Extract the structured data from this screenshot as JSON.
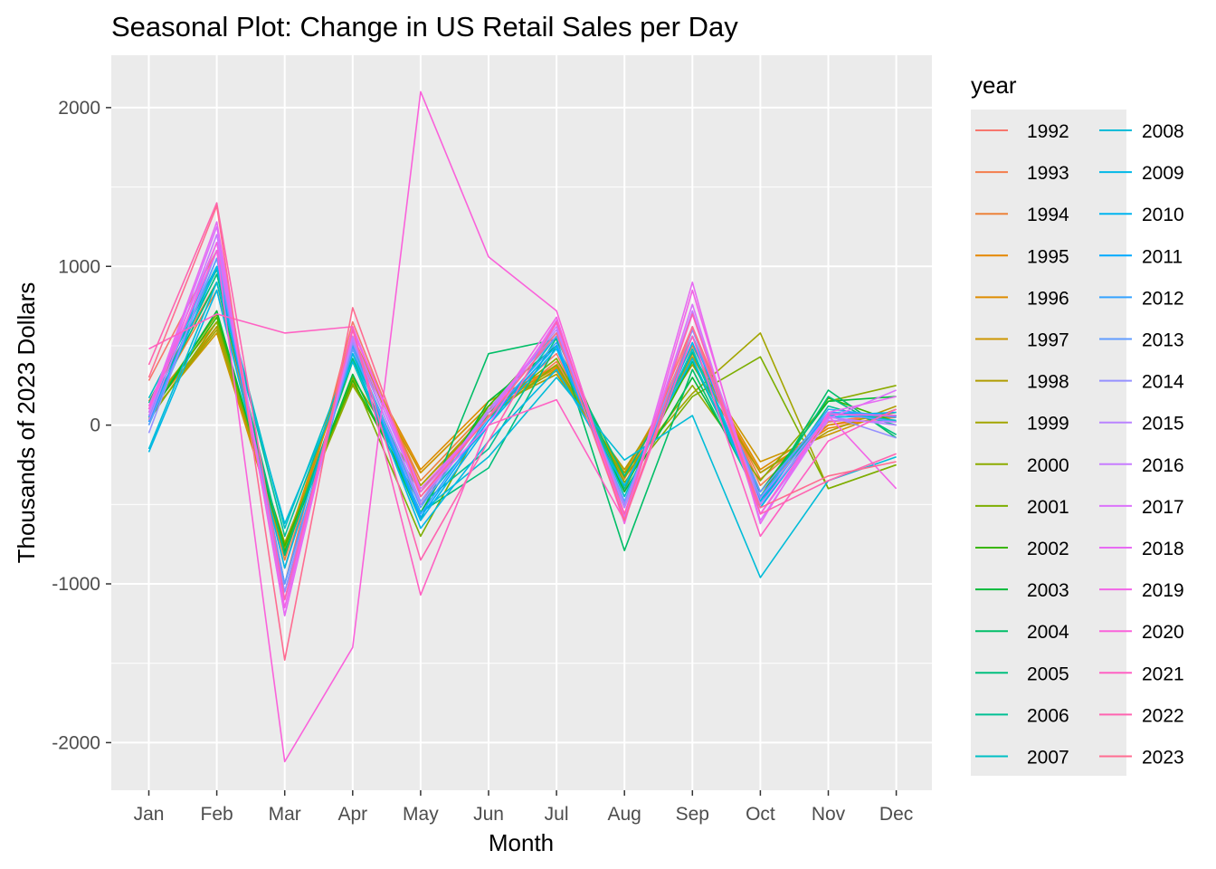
{
  "chart_data": {
    "type": "line",
    "title": "Seasonal Plot: Change in US Retail Sales per Day",
    "xlabel": "Month",
    "ylabel": "Thousands of 2023 Dollars",
    "categories": [
      "Jan",
      "Feb",
      "Mar",
      "Apr",
      "May",
      "Jun",
      "Jul",
      "Aug",
      "Sep",
      "Oct",
      "Nov",
      "Dec"
    ],
    "ylim": [
      -2300,
      2330
    ],
    "yticks": [
      -2000,
      -1000,
      0,
      1000,
      2000
    ],
    "ytick_labels": [
      "-2000",
      "-1000",
      "0",
      "1000",
      "2000"
    ],
    "grid": true,
    "legend": {
      "title": "year",
      "position": "right",
      "columns": 2
    },
    "series": [
      {
        "name": "1992",
        "color": "#F8766D",
        "values": [
          280,
          1100,
          -1000,
          650,
          -420,
          80,
          450,
          -420,
          620,
          -420,
          20,
          80
        ]
      },
      {
        "name": "1993",
        "color": "#F47D4B",
        "values": [
          150,
          900,
          -900,
          600,
          -380,
          60,
          400,
          -380,
          560,
          -380,
          0,
          50
        ]
      },
      {
        "name": "1994",
        "color": "#EC8239",
        "values": [
          100,
          850,
          -850,
          560,
          -350,
          100,
          380,
          -340,
          500,
          -340,
          20,
          60
        ]
      },
      {
        "name": "1995",
        "color": "#E58700",
        "values": [
          80,
          620,
          -820,
          500,
          -300,
          120,
          360,
          -320,
          430,
          -300,
          -20,
          60
        ]
      },
      {
        "name": "1996",
        "color": "#DE8C00",
        "values": [
          120,
          650,
          -780,
          520,
          -280,
          150,
          370,
          -300,
          450,
          -280,
          0,
          80
        ]
      },
      {
        "name": "1997",
        "color": "#CD9600",
        "values": [
          60,
          580,
          -800,
          480,
          -300,
          120,
          340,
          -320,
          430,
          -230,
          -60,
          100
        ]
      },
      {
        "name": "1998",
        "color": "#B09C00",
        "values": [
          40,
          620,
          -760,
          260,
          -420,
          100,
          320,
          -280,
          380,
          -300,
          -40,
          120
        ]
      },
      {
        "name": "1999",
        "color": "#A3A500",
        "values": [
          50,
          600,
          -740,
          300,
          -380,
          80,
          350,
          -300,
          200,
          580,
          -400,
          -250
        ]
      },
      {
        "name": "2000",
        "color": "#8CAB00",
        "values": [
          30,
          650,
          -780,
          250,
          -420,
          50,
          380,
          -330,
          250,
          -350,
          150,
          250
        ]
      },
      {
        "name": "2001",
        "color": "#7CAE00",
        "values": [
          80,
          700,
          -800,
          300,
          -700,
          80,
          420,
          -360,
          180,
          430,
          -400,
          -250
        ]
      },
      {
        "name": "2002",
        "color": "#39B600",
        "values": [
          60,
          680,
          -760,
          280,
          -500,
          120,
          580,
          -400,
          400,
          -450,
          170,
          20
        ]
      },
      {
        "name": "2003",
        "color": "#00BA38",
        "values": [
          50,
          720,
          -800,
          320,
          -550,
          150,
          500,
          -420,
          300,
          -420,
          150,
          180
        ]
      },
      {
        "name": "2004",
        "color": "#00BE67",
        "values": [
          80,
          900,
          -820,
          400,
          -600,
          450,
          540,
          -790,
          350,
          -480,
          220,
          -80
        ]
      },
      {
        "name": "2005",
        "color": "#00BF7D",
        "values": [
          100,
          950,
          -820,
          420,
          -550,
          -270,
          500,
          -320,
          400,
          -480,
          180,
          -60
        ]
      },
      {
        "name": "2006",
        "color": "#00C094",
        "values": [
          140,
          980,
          -700,
          450,
          -500,
          -150,
          550,
          -400,
          460,
          -500,
          120,
          0
        ]
      },
      {
        "name": "2007",
        "color": "#00BFC4",
        "values": [
          170,
          1000,
          -650,
          480,
          -500,
          0,
          560,
          -450,
          480,
          -520,
          80,
          30
        ]
      },
      {
        "name": "2008",
        "color": "#00BCD8",
        "values": [
          -150,
          900,
          -620,
          400,
          -550,
          -200,
          300,
          -220,
          60,
          -960,
          -350,
          -200
        ]
      },
      {
        "name": "2009",
        "color": "#00B8E7",
        "values": [
          -170,
          850,
          -900,
          450,
          -650,
          -100,
          350,
          -380,
          420,
          -500,
          50,
          60
        ]
      },
      {
        "name": "2010",
        "color": "#00B4EF",
        "values": [
          0,
          1000,
          -1000,
          500,
          -600,
          0,
          480,
          -480,
          520,
          -520,
          60,
          80
        ]
      },
      {
        "name": "2011",
        "color": "#00A9FF",
        "values": [
          20,
          1050,
          -1050,
          480,
          -580,
          30,
          500,
          -500,
          560,
          -480,
          80,
          60
        ]
      },
      {
        "name": "2012",
        "color": "#35A2FF",
        "values": [
          50,
          1100,
          -1100,
          500,
          -560,
          50,
          520,
          -520,
          600,
          -450,
          100,
          50
        ]
      },
      {
        "name": "2013",
        "color": "#619CFF",
        "values": [
          0,
          1050,
          -1000,
          480,
          -520,
          80,
          560,
          -480,
          560,
          -420,
          80,
          20
        ]
      },
      {
        "name": "2014",
        "color": "#9590FF",
        "values": [
          -50,
          1100,
          -1050,
          520,
          -480,
          100,
          580,
          -500,
          600,
          -460,
          60,
          -80
        ]
      },
      {
        "name": "2015",
        "color": "#B983FF",
        "values": [
          30,
          1150,
          -1100,
          540,
          -500,
          100,
          600,
          -520,
          700,
          -500,
          50,
          0
        ]
      },
      {
        "name": "2016",
        "color": "#C77CFF",
        "values": [
          60,
          1200,
          -1150,
          560,
          -450,
          80,
          620,
          -560,
          720,
          -560,
          30,
          20
        ]
      },
      {
        "name": "2017",
        "color": "#DB72FB",
        "values": [
          80,
          1250,
          -1200,
          600,
          -400,
          50,
          640,
          -580,
          760,
          -600,
          40,
          220
        ]
      },
      {
        "name": "2018",
        "color": "#E76BF3",
        "values": [
          100,
          1280,
          -1200,
          620,
          -450,
          0,
          660,
          -600,
          900,
          -620,
          80,
          180
        ]
      },
      {
        "name": "2019",
        "color": "#F265E7",
        "values": [
          120,
          1150,
          -1150,
          600,
          -420,
          50,
          680,
          -620,
          850,
          -560,
          60,
          -400
        ]
      },
      {
        "name": "2020",
        "color": "#FA62DB",
        "values": [
          100,
          1100,
          -2120,
          -1400,
          2100,
          1060,
          720,
          -600,
          620,
          -560,
          70,
          60
        ]
      },
      {
        "name": "2021",
        "color": "#FF61C3",
        "values": [
          480,
          700,
          580,
          620,
          -1070,
          0,
          160,
          -600,
          560,
          -700,
          -100,
          100
        ]
      },
      {
        "name": "2022",
        "color": "#FF64B0",
        "values": [
          380,
          1400,
          -1100,
          600,
          -850,
          -100,
          650,
          -560,
          700,
          -560,
          -350,
          -180
        ]
      },
      {
        "name": "2023",
        "color": "#FF6C91",
        "values": [
          300,
          1380,
          -1480,
          740,
          -450,
          50,
          580,
          -600,
          620,
          -520,
          -320,
          -230
        ]
      }
    ]
  }
}
